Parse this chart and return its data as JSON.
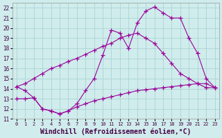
{
  "bg_color": "#d0ecec",
  "grid_color": "#aad4d4",
  "line_color": "#990099",
  "marker": "+",
  "marker_size": 4,
  "marker_color": "#990099",
  "xlabel": "Windchill (Refroidissement éolien,°C)",
  "xlabel_fontsize": 7,
  "xlim": [
    -0.5,
    23.5
  ],
  "ylim": [
    11,
    22.5
  ],
  "yticks": [
    11,
    12,
    13,
    14,
    15,
    16,
    17,
    18,
    19,
    20,
    21,
    22
  ],
  "xticks": [
    0,
    1,
    2,
    3,
    4,
    5,
    6,
    7,
    8,
    9,
    10,
    11,
    12,
    13,
    14,
    15,
    16,
    17,
    18,
    19,
    20,
    21,
    22,
    23
  ],
  "line1_x": [
    0,
    1,
    2,
    3,
    4,
    5,
    6,
    7,
    8,
    9,
    10,
    11,
    12,
    13,
    14,
    15,
    16,
    17,
    18,
    19,
    20,
    21,
    22,
    23
  ],
  "line1_y": [
    14.2,
    13.8,
    13.1,
    12.0,
    11.8,
    11.5,
    11.8,
    12.5,
    13.8,
    15.0,
    17.3,
    19.8,
    19.5,
    18.0,
    20.5,
    21.7,
    22.1,
    21.5,
    21.0,
    21.0,
    19.0,
    17.5,
    15.0,
    14.1
  ],
  "line2_x": [
    0,
    1,
    2,
    3,
    4,
    5,
    6,
    7,
    8,
    9,
    10,
    11,
    12,
    13,
    14,
    15,
    16,
    17,
    18,
    19,
    20,
    21,
    22,
    23
  ],
  "line2_y": [
    14.2,
    14.5,
    15.0,
    15.5,
    16.0,
    16.3,
    16.7,
    17.0,
    17.4,
    17.8,
    18.2,
    18.5,
    19.0,
    19.3,
    19.5,
    19.0,
    18.5,
    17.5,
    16.5,
    15.5,
    15.0,
    14.5,
    14.1,
    14.1
  ],
  "line3_x": [
    0,
    1,
    2,
    3,
    4,
    5,
    6,
    7,
    8,
    9,
    10,
    11,
    12,
    13,
    14,
    15,
    16,
    17,
    18,
    19,
    20,
    21,
    22,
    23
  ],
  "line3_y": [
    13.0,
    13.0,
    13.1,
    12.0,
    11.8,
    11.5,
    11.8,
    12.2,
    12.5,
    12.8,
    13.0,
    13.2,
    13.4,
    13.6,
    13.8,
    13.9,
    14.0,
    14.1,
    14.2,
    14.3,
    14.4,
    14.5,
    14.5,
    14.1
  ]
}
